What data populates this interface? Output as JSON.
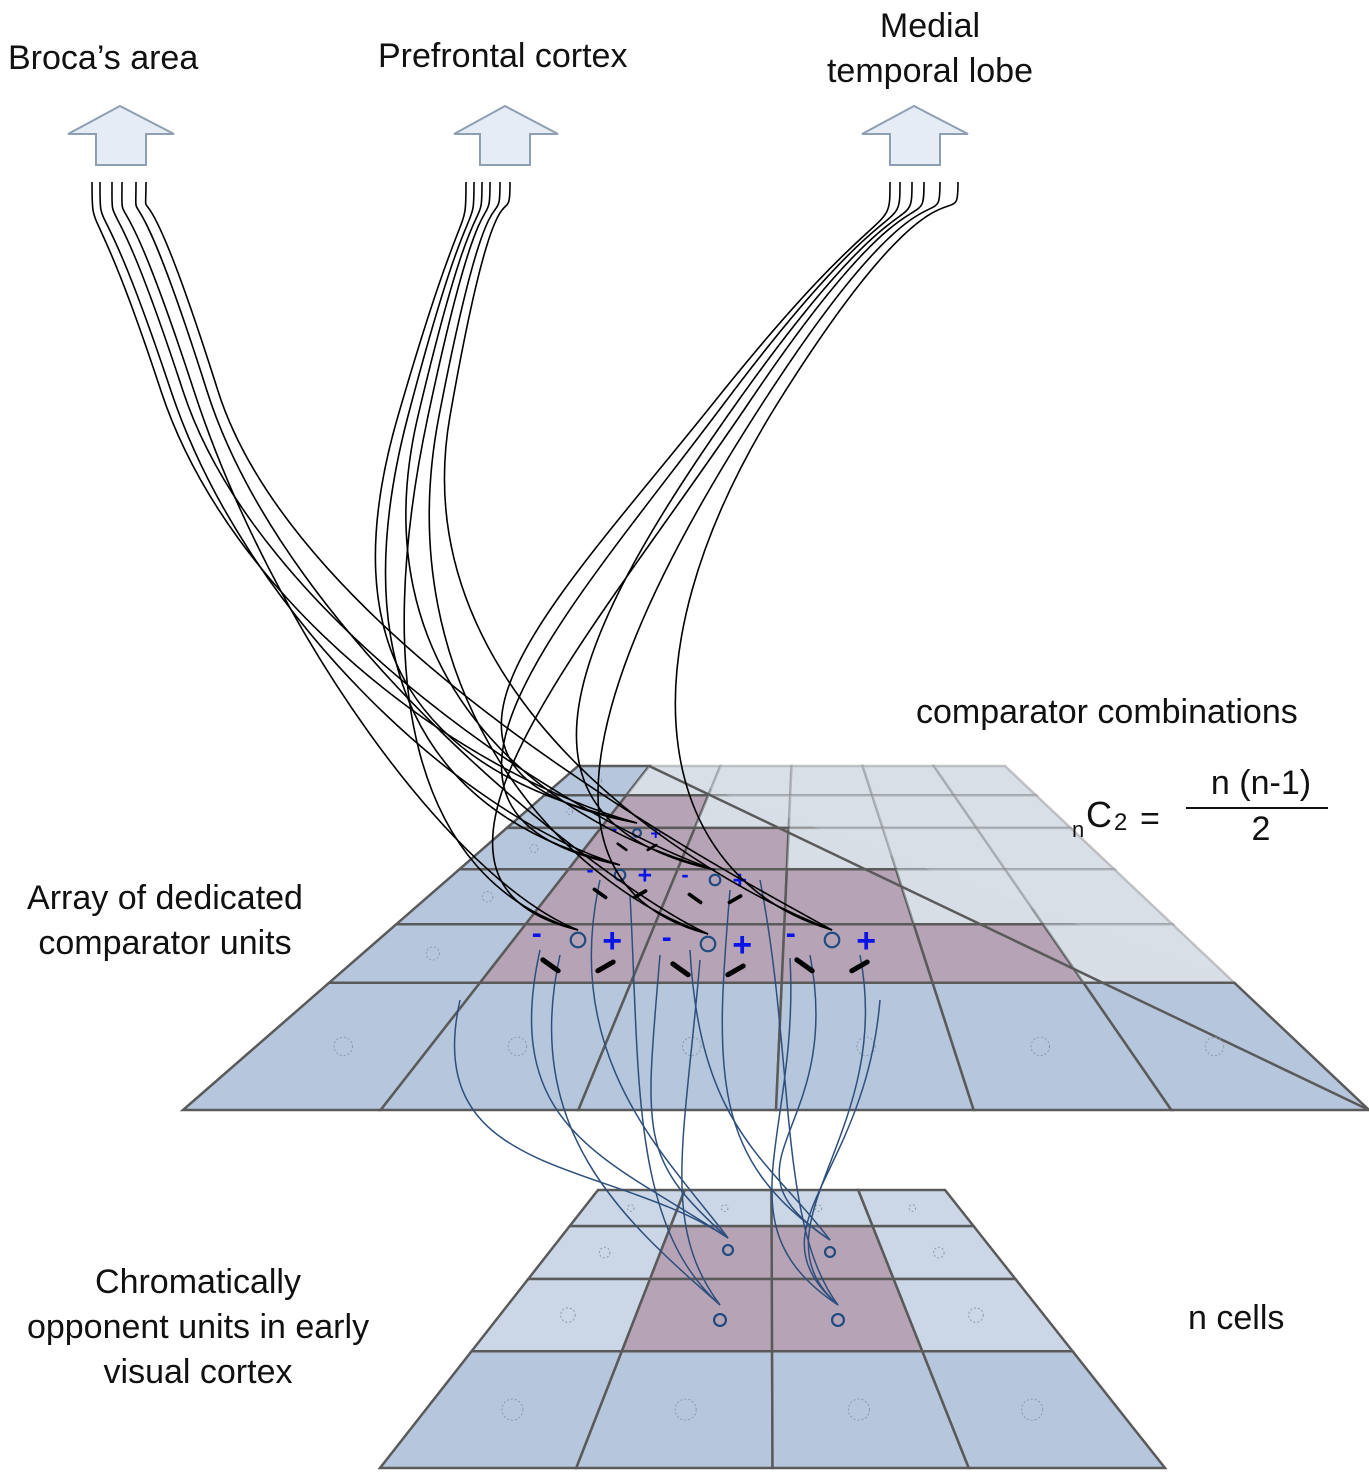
{
  "targets": [
    {
      "id": "broca",
      "label": "Broca’s area"
    },
    {
      "id": "prefrontal",
      "label": "Prefrontal cortex"
    },
    {
      "id": "mtl",
      "label": "Medial temporal lobe",
      "lines": [
        "Medial",
        "temporal lobe"
      ]
    }
  ],
  "labels": {
    "comparator_combinations": "comparator combinations",
    "array": [
      "Array of dedicated",
      "comparator units"
    ],
    "chromatic": [
      "Chromatically",
      "opponent units in early",
      "visual cortex"
    ],
    "n_cells": "n cells"
  },
  "formula": {
    "sub_n": "n",
    "symbol": "C",
    "sub_k": "2",
    "equals": "=",
    "numerator": "n (n-1)",
    "denominator": "2"
  },
  "comparator_signs": {
    "minus": "-",
    "plus": "+"
  },
  "colors": {
    "grid_cell": "#b6c6dc",
    "grid_highlight": "#b6a3b5",
    "grid_line": "#5a5a5a",
    "cell_fill": "#f3f6fb",
    "comparator_outline": "#1f4b80",
    "connections_blue": "#2d4f7d",
    "axons": "#000000",
    "sign_blue": "#0a14e6",
    "arrow_fill": "#e6ecf5",
    "arrow_stroke": "#8f9fb3"
  }
}
